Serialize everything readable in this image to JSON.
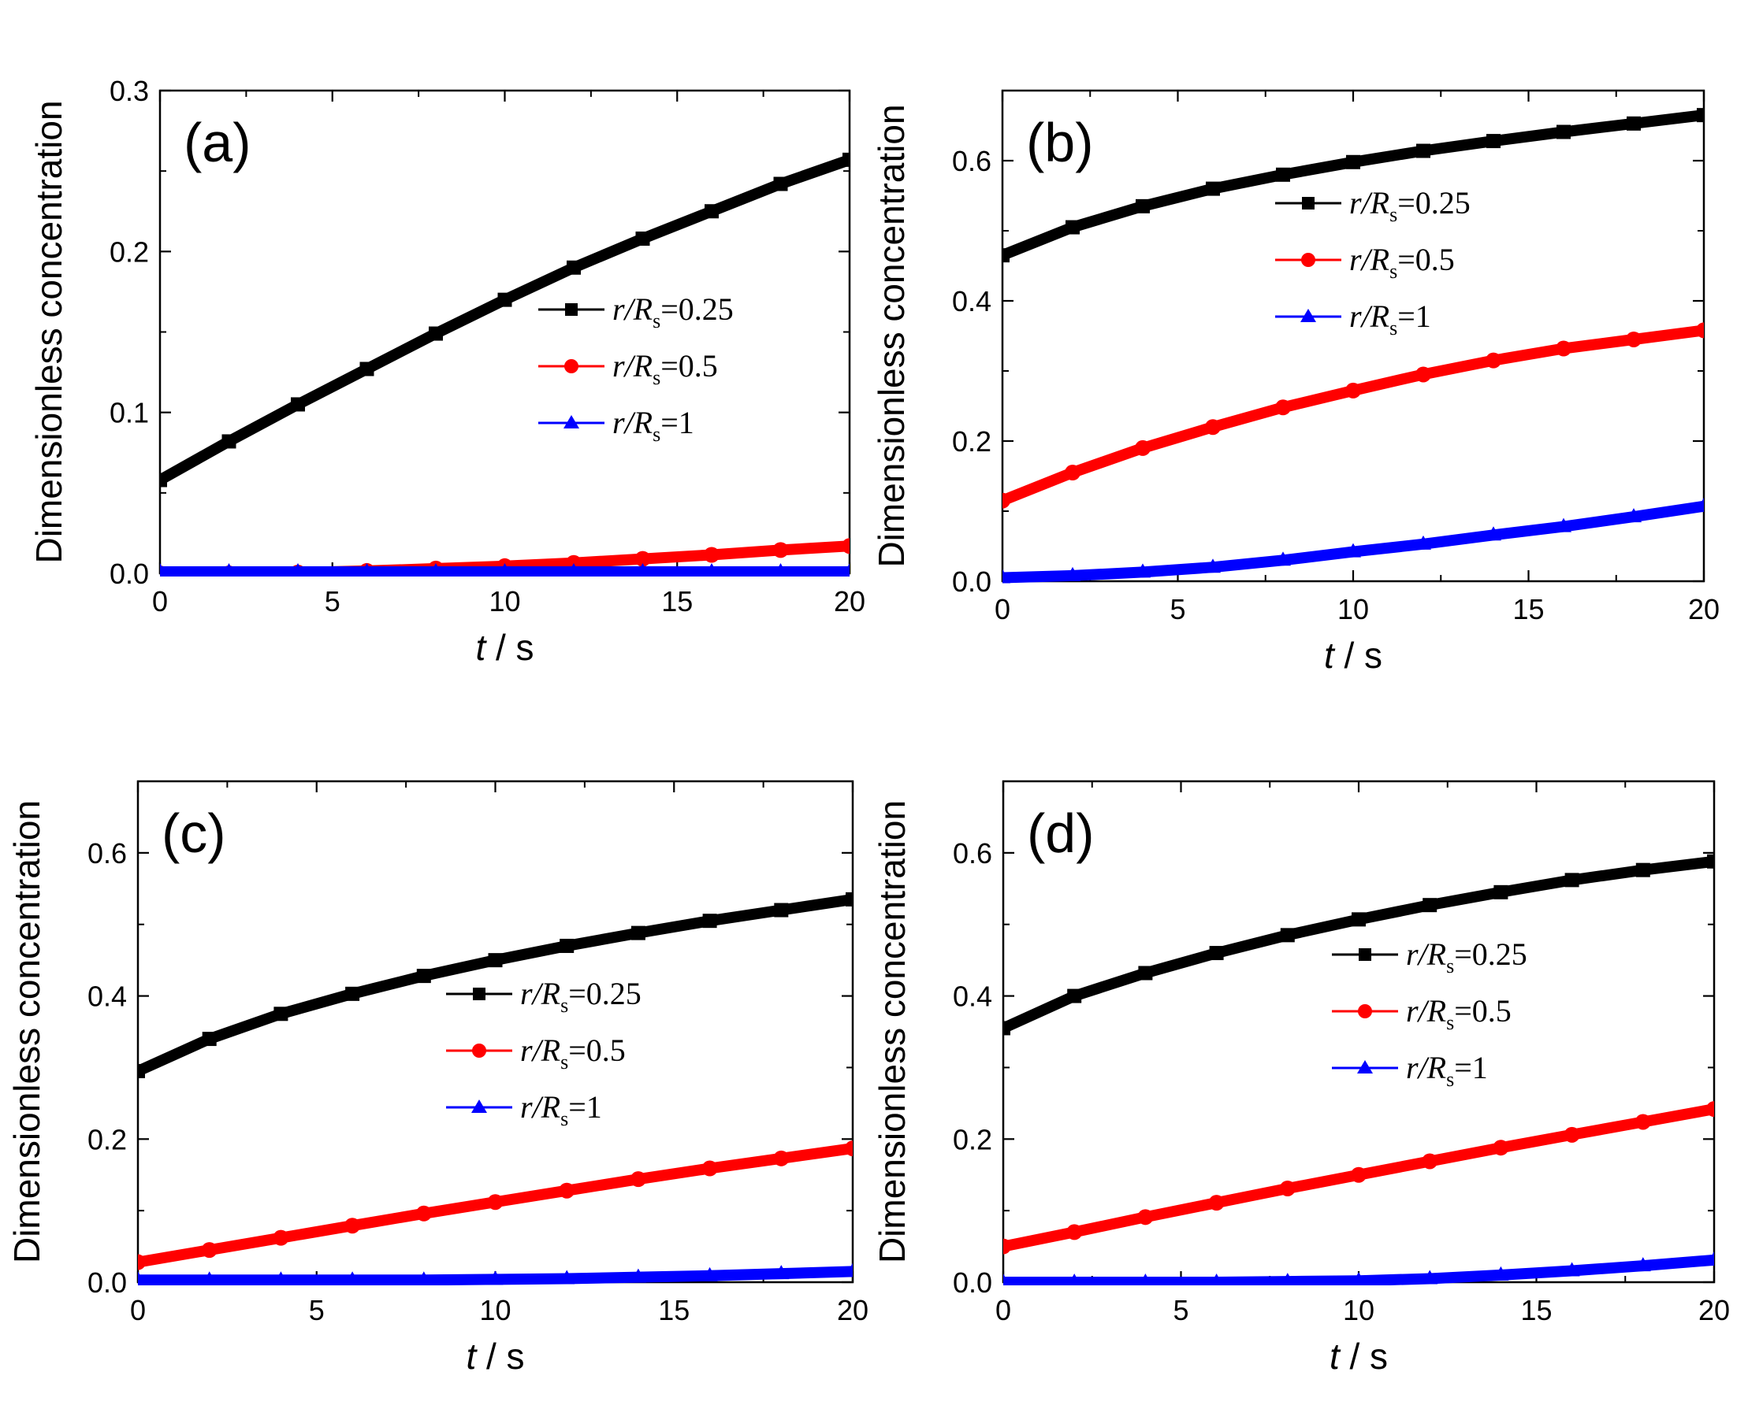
{
  "chart_data": [
    {
      "type": "line",
      "panel_label": "(a)",
      "xlabel": "t / s",
      "xlabel_italic": "t",
      "xlabel_rest": " / s",
      "ylabel": "Dimensionless concentration",
      "xlim": [
        0,
        20
      ],
      "ylim": [
        0,
        0.3
      ],
      "xticks": [
        0,
        5,
        10,
        15,
        20
      ],
      "xtick_labels": [
        "0",
        "5",
        "10",
        "15",
        "20"
      ],
      "yticks": [
        0,
        0.1,
        0.2,
        0.3
      ],
      "ytick_labels": [
        "0.0",
        "0.1",
        "0.2",
        "0.3"
      ],
      "legend_position": "middle-right",
      "x": [
        0,
        2,
        4,
        6,
        8,
        10,
        12,
        14,
        16,
        18,
        20
      ],
      "series": [
        {
          "name": "r/Rs=0.25",
          "label_var": "r/R",
          "label_sub": "s",
          "label_val": "=0.25",
          "color": "#000000",
          "marker": "square",
          "values": [
            0.058,
            0.082,
            0.105,
            0.127,
            0.149,
            0.17,
            0.19,
            0.208,
            0.225,
            0.242,
            0.257
          ]
        },
        {
          "name": "r/Rs=0.5",
          "label_var": "r/R",
          "label_sub": "s",
          "label_val": "=0.5",
          "color": "#ff0000",
          "marker": "circle",
          "values": [
            0.0,
            0.0,
            0.0005,
            0.0015,
            0.003,
            0.0045,
            0.0065,
            0.009,
            0.0115,
            0.0145,
            0.017
          ]
        },
        {
          "name": "r/Rs=1",
          "label_var": "r/R",
          "label_sub": "s",
          "label_val": "=1",
          "color": "#0000ff",
          "marker": "triangle",
          "values": [
            0.001,
            0.001,
            0.001,
            0.001,
            0.001,
            0.001,
            0.001,
            0.001,
            0.001,
            0.001,
            0.001
          ]
        }
      ]
    },
    {
      "type": "line",
      "panel_label": "(b)",
      "xlabel": "t / s",
      "xlabel_italic": "t",
      "xlabel_rest": " / s",
      "ylabel": "Dimensionless concentration",
      "xlim": [
        0,
        20
      ],
      "ylim": [
        0,
        0.7
      ],
      "xticks": [
        0,
        5,
        10,
        15,
        20
      ],
      "xtick_labels": [
        "0",
        "5",
        "10",
        "15",
        "20"
      ],
      "yticks": [
        0,
        0.2,
        0.4,
        0.6
      ],
      "ytick_labels": [
        "0.0",
        "0.2",
        "0.4",
        "0.6"
      ],
      "legend_position": "upper-right",
      "x": [
        0,
        2,
        4,
        6,
        8,
        10,
        12,
        14,
        16,
        18,
        20
      ],
      "series": [
        {
          "name": "r/Rs=0.25",
          "label_var": "r/R",
          "label_sub": "s",
          "label_val": "=0.25",
          "color": "#000000",
          "marker": "square",
          "values": [
            0.465,
            0.505,
            0.535,
            0.56,
            0.58,
            0.598,
            0.614,
            0.628,
            0.641,
            0.653,
            0.665
          ]
        },
        {
          "name": "r/Rs=0.5",
          "label_var": "r/R",
          "label_sub": "s",
          "label_val": "=0.5",
          "color": "#ff0000",
          "marker": "circle",
          "values": [
            0.115,
            0.155,
            0.19,
            0.22,
            0.248,
            0.272,
            0.295,
            0.315,
            0.332,
            0.345,
            0.358
          ]
        },
        {
          "name": "r/Rs=1",
          "label_var": "r/R",
          "label_sub": "s",
          "label_val": "=1",
          "color": "#0000ff",
          "marker": "triangle",
          "values": [
            0.005,
            0.008,
            0.013,
            0.02,
            0.03,
            0.042,
            0.053,
            0.066,
            0.078,
            0.092,
            0.107
          ]
        }
      ]
    },
    {
      "type": "line",
      "panel_label": "(c)",
      "xlabel": "t / s",
      "xlabel_italic": "t",
      "xlabel_rest": " / s",
      "ylabel": "Dimensionless concentration",
      "xlim": [
        0,
        20
      ],
      "ylim": [
        0,
        0.7
      ],
      "xticks": [
        0,
        5,
        10,
        15,
        20
      ],
      "xtick_labels": [
        "0",
        "5",
        "10",
        "15",
        "20"
      ],
      "yticks": [
        0,
        0.2,
        0.4,
        0.6
      ],
      "ytick_labels": [
        "0.0",
        "0.2",
        "0.4",
        "0.6"
      ],
      "legend_position": "middle-right",
      "x": [
        0,
        2,
        4,
        6,
        8,
        10,
        12,
        14,
        16,
        18,
        20
      ],
      "series": [
        {
          "name": "r/Rs=0.25",
          "label_var": "r/R",
          "label_sub": "s",
          "label_val": "=0.25",
          "color": "#000000",
          "marker": "square",
          "values": [
            0.295,
            0.34,
            0.375,
            0.403,
            0.428,
            0.45,
            0.47,
            0.488,
            0.505,
            0.52,
            0.535
          ]
        },
        {
          "name": "r/Rs=0.5",
          "label_var": "r/R",
          "label_sub": "s",
          "label_val": "=0.5",
          "color": "#ff0000",
          "marker": "circle",
          "values": [
            0.028,
            0.045,
            0.062,
            0.079,
            0.096,
            0.112,
            0.128,
            0.144,
            0.159,
            0.173,
            0.187
          ]
        },
        {
          "name": "r/Rs=1",
          "label_var": "r/R",
          "label_sub": "s",
          "label_val": "=1",
          "color": "#0000ff",
          "marker": "triangle",
          "values": [
            0.003,
            0.003,
            0.003,
            0.003,
            0.003,
            0.004,
            0.005,
            0.007,
            0.009,
            0.012,
            0.015
          ]
        }
      ]
    },
    {
      "type": "line",
      "panel_label": "(d)",
      "xlabel": "t / s",
      "xlabel_italic": "t",
      "xlabel_rest": " / s",
      "ylabel": "Dimensionless concentration",
      "xlim": [
        0,
        20
      ],
      "ylim": [
        0,
        0.7
      ],
      "xticks": [
        0,
        5,
        10,
        15,
        20
      ],
      "xtick_labels": [
        "0",
        "5",
        "10",
        "15",
        "20"
      ],
      "yticks": [
        0,
        0.2,
        0.4,
        0.6
      ],
      "ytick_labels": [
        "0.0",
        "0.2",
        "0.4",
        "0.6"
      ],
      "legend_position": "middle-right",
      "x": [
        0,
        2,
        4,
        6,
        8,
        10,
        12,
        14,
        16,
        18,
        20
      ],
      "series": [
        {
          "name": "r/Rs=0.25",
          "label_var": "r/R",
          "label_sub": "s",
          "label_val": "=0.25",
          "color": "#000000",
          "marker": "square",
          "values": [
            0.355,
            0.4,
            0.432,
            0.46,
            0.485,
            0.507,
            0.527,
            0.545,
            0.562,
            0.576,
            0.588
          ]
        },
        {
          "name": "r/Rs=0.5",
          "label_var": "r/R",
          "label_sub": "s",
          "label_val": "=0.5",
          "color": "#ff0000",
          "marker": "circle",
          "values": [
            0.05,
            0.07,
            0.091,
            0.111,
            0.131,
            0.15,
            0.169,
            0.188,
            0.206,
            0.224,
            0.242
          ]
        },
        {
          "name": "r/Rs=1",
          "label_var": "r/R",
          "label_sub": "s",
          "label_val": "=1",
          "color": "#0000ff",
          "marker": "triangle",
          "values": [
            0.0,
            0.0,
            0.0,
            0.0,
            0.001,
            0.002,
            0.005,
            0.01,
            0.016,
            0.023,
            0.031
          ]
        }
      ]
    }
  ]
}
